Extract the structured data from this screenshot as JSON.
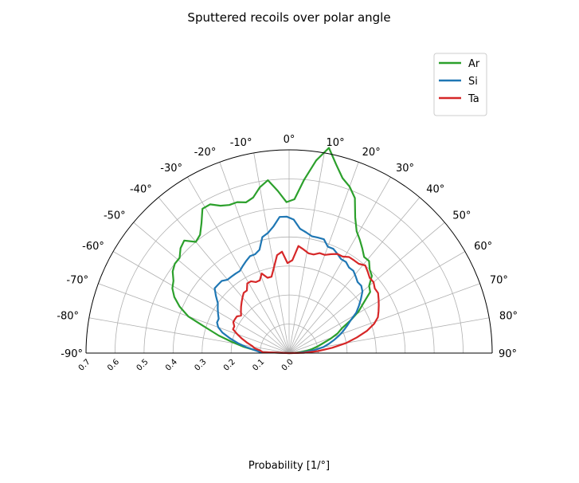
{
  "chart_data": {
    "type": "polar-line",
    "title": "Sputtered recoils over polar angle",
    "rlabel": "Probability [1/°]",
    "theta_range": [
      -90,
      90
    ],
    "theta_ticks": [
      -90,
      -80,
      -70,
      -60,
      -50,
      -40,
      -30,
      -20,
      -10,
      0,
      10,
      20,
      30,
      40,
      50,
      60,
      70,
      80,
      90
    ],
    "theta_tick_labels": [
      "-90°",
      "-80°",
      "-70°",
      "-60°",
      "-50°",
      "-40°",
      "-30°",
      "-20°",
      "-10°",
      "0°",
      "10°",
      "20°",
      "30°",
      "40°",
      "50°",
      "60°",
      "70°",
      "80°",
      "90°"
    ],
    "r_range": [
      0,
      0.7
    ],
    "r_ticks": [
      0.0,
      0.1,
      0.2,
      0.3,
      0.4,
      0.5,
      0.6,
      0.7
    ],
    "r_tick_labels": [
      "0.0",
      "0.1",
      "0.2",
      "0.3",
      "0.4",
      "0.5",
      "0.6",
      "0.7"
    ],
    "grid": true,
    "legend_position": "top-right",
    "series": [
      {
        "name": "Ar",
        "color": "#2ca02c",
        "theta": [
          -88,
          -85,
          -82,
          -79,
          -76,
          -73,
          -70,
          -67,
          -64,
          -61,
          -58,
          -55,
          -52,
          -49,
          -46,
          -43,
          -40,
          -37,
          -34,
          -31,
          -28,
          -25,
          -22,
          -19,
          -16,
          -13,
          -10,
          -7,
          -4,
          -1,
          2,
          5,
          8,
          11,
          14,
          17,
          20,
          23,
          26,
          29,
          32,
          35,
          38,
          41,
          44,
          47,
          50,
          53,
          56,
          59,
          62,
          65,
          68,
          71,
          74,
          77,
          80,
          83,
          86,
          89
        ],
        "r": [
          0.09,
          0.12,
          0.16,
          0.2,
          0.25,
          0.3,
          0.37,
          0.41,
          0.44,
          0.46,
          0.47,
          0.49,
          0.5,
          0.5,
          0.52,
          0.53,
          0.5,
          0.51,
          0.54,
          0.58,
          0.58,
          0.56,
          0.55,
          0.55,
          0.54,
          0.55,
          0.58,
          0.6,
          0.56,
          0.52,
          0.53,
          0.6,
          0.67,
          0.72,
          0.67,
          0.63,
          0.61,
          0.58,
          0.52,
          0.48,
          0.46,
          0.44,
          0.42,
          0.42,
          0.4,
          0.39,
          0.36,
          0.35,
          0.31,
          0.28,
          0.24,
          0.2,
          0.18,
          0.15,
          0.12,
          0.1,
          0.08,
          0.06,
          0.04,
          0.02
        ]
      },
      {
        "name": "Si",
        "color": "#1f77b4",
        "theta": [
          -88,
          -85,
          -82,
          -79,
          -76,
          -73,
          -70,
          -67,
          -64,
          -61,
          -58,
          -55,
          -52,
          -49,
          -46,
          -43,
          -40,
          -37,
          -34,
          -31,
          -28,
          -25,
          -22,
          -19,
          -16,
          -13,
          -10,
          -7,
          -4,
          -1,
          2,
          5,
          8,
          11,
          14,
          17,
          20,
          23,
          26,
          29,
          32,
          35,
          38,
          41,
          44,
          47,
          50,
          53,
          56,
          59,
          62,
          65,
          68,
          71,
          74,
          77,
          80,
          83,
          86,
          89
        ],
        "r": [
          0.1,
          0.12,
          0.15,
          0.18,
          0.21,
          0.24,
          0.26,
          0.27,
          0.27,
          0.28,
          0.29,
          0.3,
          0.32,
          0.34,
          0.34,
          0.34,
          0.33,
          0.33,
          0.33,
          0.33,
          0.34,
          0.35,
          0.36,
          0.36,
          0.37,
          0.41,
          0.42,
          0.44,
          0.47,
          0.47,
          0.46,
          0.43,
          0.42,
          0.41,
          0.41,
          0.41,
          0.39,
          0.39,
          0.38,
          0.37,
          0.37,
          0.36,
          0.36,
          0.35,
          0.34,
          0.34,
          0.33,
          0.31,
          0.29,
          0.27,
          0.24,
          0.22,
          0.2,
          0.18,
          0.16,
          0.14,
          0.12,
          0.09,
          0.06,
          0.03
        ]
      },
      {
        "name": "Ta",
        "color": "#d62728",
        "theta": [
          -88,
          -85,
          -82,
          -79,
          -76,
          -73,
          -70,
          -67,
          -64,
          -61,
          -58,
          -55,
          -52,
          -49,
          -46,
          -43,
          -40,
          -37,
          -34,
          -31,
          -28,
          -25,
          -22,
          -19,
          -16,
          -13,
          -10,
          -7,
          -4,
          -1,
          2,
          5,
          8,
          11,
          14,
          17,
          20,
          23,
          26,
          29,
          32,
          35,
          38,
          41,
          44,
          47,
          50,
          53,
          56,
          59,
          62,
          65,
          68,
          71,
          74,
          77,
          80,
          83,
          86,
          89
        ],
        "r": [
          0.09,
          0.1,
          0.12,
          0.13,
          0.15,
          0.17,
          0.19,
          0.21,
          0.21,
          0.22,
          0.22,
          0.22,
          0.21,
          0.22,
          0.23,
          0.24,
          0.25,
          0.26,
          0.26,
          0.28,
          0.28,
          0.27,
          0.27,
          0.29,
          0.27,
          0.27,
          0.3,
          0.34,
          0.35,
          0.31,
          0.32,
          0.37,
          0.36,
          0.35,
          0.35,
          0.36,
          0.36,
          0.37,
          0.38,
          0.38,
          0.39,
          0.39,
          0.39,
          0.4,
          0.39,
          0.38,
          0.38,
          0.37,
          0.37,
          0.36,
          0.35,
          0.34,
          0.33,
          0.31,
          0.28,
          0.24,
          0.2,
          0.15,
          0.1,
          0.05
        ]
      }
    ]
  }
}
